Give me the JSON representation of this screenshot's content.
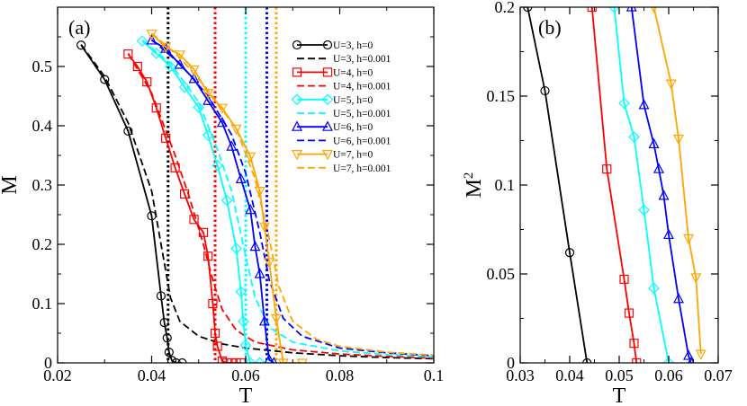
{
  "chart_data": [
    {
      "type": "line",
      "panel_label": "(a)",
      "xlabel": "T",
      "ylabel": "M",
      "xlim": [
        0.02,
        0.1
      ],
      "ylim": [
        0,
        0.6
      ],
      "xticks": [
        0.02,
        0.04,
        0.06,
        0.08,
        0.1
      ],
      "xtick_labels": [
        "0.02",
        "0.04",
        "0.06",
        "0.08",
        "0.1"
      ],
      "yticks": [
        0,
        0.1,
        0.2,
        0.3,
        0.4,
        0.5
      ],
      "ytick_labels": [
        "0",
        "0.1",
        "0.2",
        "0.3",
        "0.4",
        "0.5"
      ],
      "series": [
        {
          "name": "U=3, h=0",
          "color": "#000000",
          "style": "solid",
          "marker": "circle",
          "x": [
            0.025,
            0.03,
            0.035,
            0.04,
            0.042,
            0.0427,
            0.0433,
            0.0437,
            0.0443,
            0.0452,
            0.0465
          ],
          "y": [
            0.536,
            0.478,
            0.391,
            0.248,
            0.113,
            0.068,
            0.042,
            0.018,
            0.004,
            0.0,
            0.0
          ]
        },
        {
          "name": "U=3, h=0.001",
          "color": "#000000",
          "style": "dashed",
          "marker": "none",
          "x": [
            0.025,
            0.03,
            0.035,
            0.04,
            0.042,
            0.044,
            0.046,
            0.05,
            0.055,
            0.06,
            0.07,
            0.08,
            0.09,
            0.1
          ],
          "y": [
            0.537,
            0.483,
            0.405,
            0.29,
            0.2,
            0.11,
            0.07,
            0.045,
            0.032,
            0.025,
            0.017,
            0.012,
            0.009,
            0.007
          ]
        },
        {
          "name": "U=4, h=0",
          "color": "#ff0000",
          "style": "solid",
          "marker": "square",
          "x": [
            0.035,
            0.037,
            0.039,
            0.041,
            0.043,
            0.045,
            0.047,
            0.049,
            0.051,
            0.052,
            0.053,
            0.0535,
            0.054,
            0.055,
            0.056,
            0.057,
            0.058,
            0.059
          ],
          "y": [
            0.521,
            0.5,
            0.474,
            0.43,
            0.379,
            0.329,
            0.285,
            0.242,
            0.22,
            0.18,
            0.1,
            0.05,
            0.028,
            0.003,
            0.0,
            0.0,
            0.0,
            0.0
          ]
        },
        {
          "name": "U=4, h=0.001",
          "color": "#ff0000",
          "style": "dashed",
          "marker": "none",
          "x": [
            0.035,
            0.04,
            0.045,
            0.048,
            0.051,
            0.053,
            0.055,
            0.058,
            0.062,
            0.07,
            0.08,
            0.09,
            0.1
          ],
          "y": [
            0.522,
            0.455,
            0.35,
            0.28,
            0.2,
            0.14,
            0.09,
            0.055,
            0.035,
            0.022,
            0.015,
            0.011,
            0.008
          ]
        },
        {
          "name": "U=5, h=0",
          "color": "#00ffff",
          "style": "solid",
          "marker": "diamond",
          "x": [
            0.038,
            0.041,
            0.044,
            0.047,
            0.05,
            0.052,
            0.054,
            0.056,
            0.058,
            0.059,
            0.0595,
            0.06,
            0.061,
            0.063,
            0.065
          ],
          "y": [
            0.543,
            0.522,
            0.5,
            0.465,
            0.431,
            0.384,
            0.333,
            0.274,
            0.193,
            0.12,
            0.07,
            0.03,
            0.0,
            0.0,
            0.0
          ]
        },
        {
          "name": "U=5, h=0.001",
          "color": "#00ffff",
          "style": "dashed",
          "marker": "none",
          "x": [
            0.038,
            0.044,
            0.05,
            0.054,
            0.057,
            0.06,
            0.062,
            0.065,
            0.07,
            0.08,
            0.09,
            0.1
          ],
          "y": [
            0.544,
            0.505,
            0.44,
            0.36,
            0.29,
            0.18,
            0.11,
            0.06,
            0.035,
            0.02,
            0.014,
            0.01
          ]
        },
        {
          "name": "U=6, h=0",
          "color": "#0000ff",
          "style": "solid",
          "marker": "triangle-up",
          "x": [
            0.04,
            0.043,
            0.046,
            0.049,
            0.052,
            0.055,
            0.057,
            0.059,
            0.061,
            0.062,
            0.063,
            0.064,
            0.065,
            0.066
          ],
          "y": [
            0.544,
            0.53,
            0.503,
            0.479,
            0.442,
            0.405,
            0.365,
            0.31,
            0.258,
            0.196,
            0.15,
            0.07,
            0.005,
            0.0
          ]
        },
        {
          "name": "U=6, h=0.001",
          "color": "#0000ff",
          "style": "dashed",
          "marker": "none",
          "x": [
            0.04,
            0.046,
            0.052,
            0.057,
            0.06,
            0.063,
            0.065,
            0.068,
            0.072,
            0.08,
            0.09,
            0.1
          ],
          "y": [
            0.545,
            0.505,
            0.45,
            0.385,
            0.32,
            0.22,
            0.14,
            0.075,
            0.045,
            0.025,
            0.017,
            0.012
          ]
        },
        {
          "name": "U=7, h=0",
          "color": "#ffa500",
          "style": "solid",
          "marker": "triangle-down",
          "x": [
            0.04,
            0.043,
            0.046,
            0.049,
            0.052,
            0.055,
            0.058,
            0.061,
            0.063,
            0.064,
            0.065,
            0.0665,
            0.068,
            0.072
          ],
          "y": [
            0.555,
            0.533,
            0.52,
            0.495,
            0.455,
            0.43,
            0.395,
            0.348,
            0.29,
            0.23,
            0.17,
            0.075,
            0.0,
            0.0
          ]
        },
        {
          "name": "U=7, h=0.001",
          "color": "#ffa500",
          "style": "dashed",
          "marker": "none",
          "x": [
            0.04,
            0.046,
            0.052,
            0.058,
            0.062,
            0.065,
            0.067,
            0.07,
            0.075,
            0.08,
            0.09,
            0.1
          ],
          "y": [
            0.556,
            0.515,
            0.46,
            0.395,
            0.31,
            0.21,
            0.13,
            0.07,
            0.04,
            0.028,
            0.018,
            0.013
          ]
        }
      ],
      "vlines": [
        {
          "x": 0.0435,
          "color": "#000000"
        },
        {
          "x": 0.0535,
          "color": "#ff0000"
        },
        {
          "x": 0.06,
          "color": "#00ffff"
        },
        {
          "x": 0.0645,
          "color": "#0000ff"
        },
        {
          "x": 0.0665,
          "color": "#ffa500"
        }
      ],
      "legend_position": "top-right"
    },
    {
      "type": "line",
      "panel_label": "(b)",
      "xlabel": "T",
      "ylabel": "M",
      "ylabel_superscript": "2",
      "xlim": [
        0.03,
        0.07
      ],
      "ylim": [
        0,
        0.2
      ],
      "xticks": [
        0.03,
        0.04,
        0.05,
        0.06,
        0.07
      ],
      "xtick_labels": [
        "0.03",
        "0.04",
        "0.05",
        "0.06",
        "0.07"
      ],
      "yticks": [
        0,
        0.05,
        0.1,
        0.15,
        0.2
      ],
      "ytick_labels": [
        "0",
        "0.05",
        "0.1",
        "0.15",
        "0.2"
      ],
      "series": [
        {
          "name": "U=3",
          "color": "#000000",
          "marker": "circle",
          "x": [
            0.0315,
            0.035,
            0.04,
            0.0435
          ],
          "y": [
            0.2,
            0.153,
            0.062,
            0.0
          ]
        },
        {
          "name": "U=4",
          "color": "#ff0000",
          "marker": "square",
          "x": [
            0.0445,
            0.0475,
            0.051,
            0.052,
            0.053,
            0.0535
          ],
          "y": [
            0.2,
            0.109,
            0.047,
            0.028,
            0.011,
            0.0
          ]
        },
        {
          "name": "U=5",
          "color": "#00ffff",
          "marker": "diamond",
          "x": [
            0.049,
            0.051,
            0.053,
            0.055,
            0.057,
            0.06
          ],
          "y": [
            0.2,
            0.146,
            0.127,
            0.086,
            0.042,
            0.0
          ]
        },
        {
          "name": "U=6",
          "color": "#0000ff",
          "marker": "triangle-up",
          "x": [
            0.0525,
            0.055,
            0.057,
            0.058,
            0.059,
            0.06,
            0.062,
            0.064,
            0.0645
          ],
          "y": [
            0.2,
            0.145,
            0.123,
            0.109,
            0.094,
            0.072,
            0.036,
            0.004,
            0.0
          ]
        },
        {
          "name": "U=7",
          "color": "#ffa500",
          "marker": "triangle-down",
          "x": [
            0.057,
            0.0605,
            0.062,
            0.064,
            0.0655,
            0.0665
          ],
          "y": [
            0.2,
            0.157,
            0.126,
            0.07,
            0.048,
            0.005
          ]
        }
      ]
    }
  ]
}
